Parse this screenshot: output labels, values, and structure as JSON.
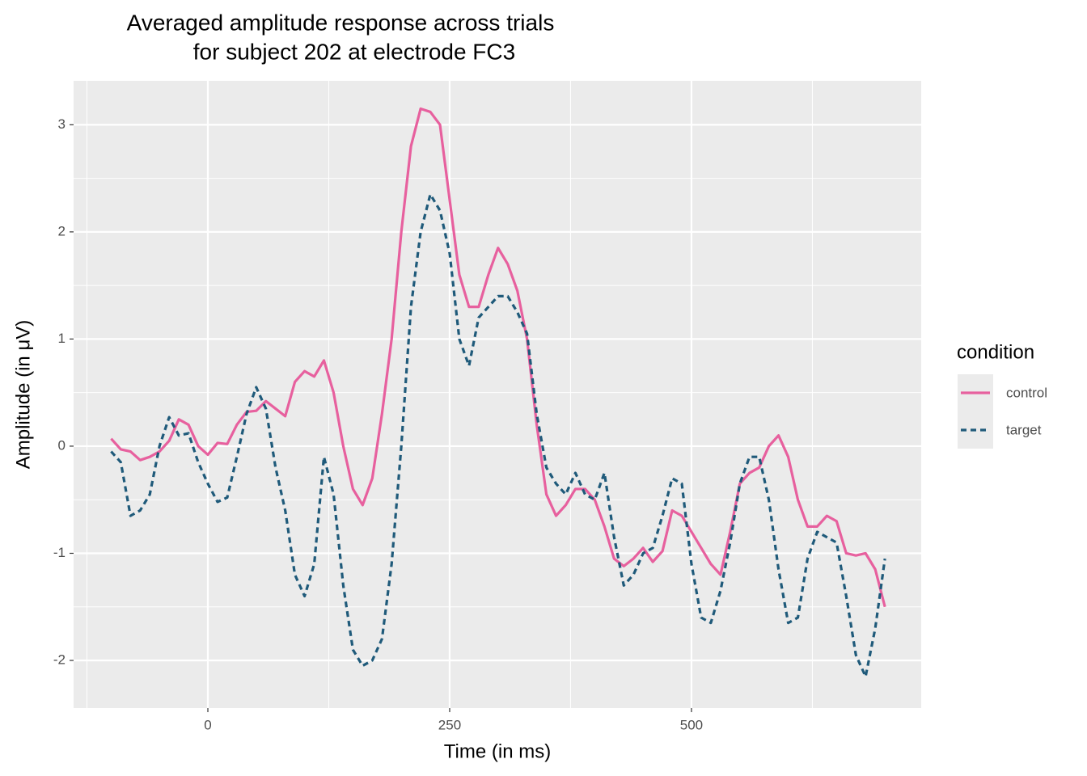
{
  "chart_data": {
    "type": "line",
    "title": [
      "Averaged amplitude response across trials",
      "for subject 202 at electrode FC3"
    ],
    "x_label": "Time (in ms)",
    "y_label": "Amplitude (in μV)",
    "legend_title": "condition",
    "legend_position": "right",
    "x": [
      -100,
      -90,
      -80,
      -70,
      -60,
      -50,
      -40,
      -30,
      -20,
      -10,
      0,
      10,
      20,
      30,
      40,
      50,
      60,
      70,
      80,
      90,
      100,
      110,
      120,
      130,
      140,
      150,
      160,
      170,
      180,
      190,
      200,
      210,
      220,
      230,
      240,
      250,
      260,
      270,
      280,
      290,
      300,
      310,
      320,
      330,
      340,
      350,
      360,
      370,
      380,
      390,
      400,
      410,
      420,
      430,
      440,
      450,
      460,
      470,
      480,
      490,
      500,
      510,
      520,
      530,
      540,
      550,
      560,
      570,
      580,
      590,
      600,
      610,
      620,
      630,
      640,
      650,
      660,
      670,
      680,
      690,
      700
    ],
    "series": [
      {
        "name": "control",
        "color": "#e7609e",
        "dash": false,
        "values": [
          0.07,
          -0.03,
          -0.05,
          -0.13,
          -0.1,
          -0.05,
          0.05,
          0.25,
          0.2,
          0.0,
          -0.08,
          0.03,
          0.02,
          0.2,
          0.32,
          0.33,
          0.42,
          0.35,
          0.28,
          0.6,
          0.7,
          0.65,
          0.8,
          0.5,
          0.0,
          -0.4,
          -0.55,
          -0.3,
          0.3,
          1.0,
          2.0,
          2.8,
          3.15,
          3.12,
          3.0,
          2.3,
          1.6,
          1.3,
          1.3,
          1.6,
          1.85,
          1.7,
          1.45,
          1.0,
          0.2,
          -0.45,
          -0.65,
          -0.55,
          -0.4,
          -0.4,
          -0.5,
          -0.75,
          -1.05,
          -1.12,
          -1.05,
          -0.95,
          -1.08,
          -0.98,
          -0.6,
          -0.65,
          -0.8,
          -0.95,
          -1.1,
          -1.2,
          -0.8,
          -0.35,
          -0.25,
          -0.2,
          0.0,
          0.1,
          -0.1,
          -0.5,
          -0.75,
          -0.75,
          -0.65,
          -0.7,
          -1.0,
          -1.02,
          -1.0,
          -1.15,
          -1.5
        ]
      },
      {
        "name": "target",
        "color": "#1f5a7a",
        "dash": true,
        "values": [
          -0.05,
          -0.15,
          -0.65,
          -0.6,
          -0.45,
          0.0,
          0.27,
          0.1,
          0.12,
          -0.15,
          -0.35,
          -0.52,
          -0.48,
          -0.1,
          0.3,
          0.55,
          0.35,
          -0.2,
          -0.6,
          -1.2,
          -1.4,
          -1.1,
          -0.1,
          -0.45,
          -1.3,
          -1.9,
          -2.05,
          -2.0,
          -1.8,
          -1.1,
          0.0,
          1.3,
          2.0,
          2.35,
          2.2,
          1.8,
          1.0,
          0.75,
          1.2,
          1.3,
          1.4,
          1.4,
          1.25,
          1.05,
          0.3,
          -0.2,
          -0.35,
          -0.45,
          -0.25,
          -0.45,
          -0.5,
          -0.25,
          -0.85,
          -1.3,
          -1.2,
          -1.0,
          -0.95,
          -0.65,
          -0.3,
          -0.35,
          -1.1,
          -1.6,
          -1.65,
          -1.35,
          -0.9,
          -0.35,
          -0.1,
          -0.1,
          -0.5,
          -1.15,
          -1.65,
          -1.6,
          -1.05,
          -0.8,
          -0.85,
          -0.9,
          -1.4,
          -1.95,
          -2.15,
          -1.7,
          -1.05
        ]
      }
    ],
    "xlim": [
      -138.8,
      737.5
    ],
    "ylim": [
      -2.445,
      3.41
    ],
    "xticks": [
      0,
      250,
      500
    ],
    "yticks": [
      -2,
      -1,
      0,
      1,
      2,
      3
    ],
    "minor_xticks": [
      -125,
      125,
      375,
      625
    ],
    "minor_yticks": [
      -1.5,
      -0.5,
      0.5,
      1.5,
      2.5
    ],
    "grid": true
  }
}
